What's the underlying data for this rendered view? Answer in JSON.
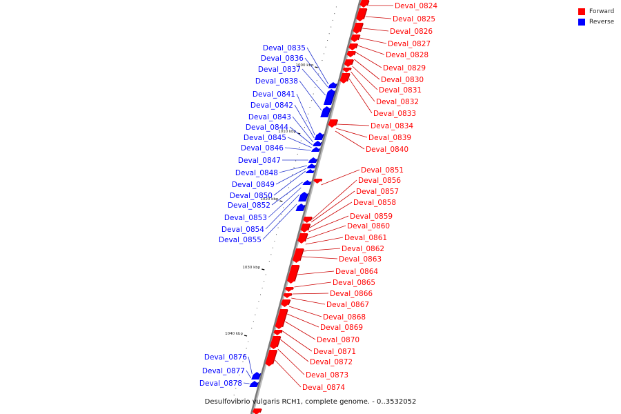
{
  "caption": "Desulfovibrio vulgaris RCH1, complete genome. - 0..3532052",
  "legend": {
    "forward_label": "Forward",
    "reverse_label": "Reverse"
  },
  "colors": {
    "forward": "#ff0000",
    "reverse": "#0000ff",
    "backbone": "#7a7a7a",
    "tick": "#000000",
    "leader_forward": "#cc0000",
    "leader_reverse": "#2233cc"
  },
  "scale": {
    "tick_labels": [
      "1000 kbp",
      "1010 kbp",
      "1020 kbp",
      "1030 kbp",
      "1040 kbp"
    ]
  },
  "forward_genes": [
    "Deval_0824",
    "Deval_0825",
    "Deval_0826",
    "Deval_0827",
    "Deval_0828",
    "Deval_0829",
    "Deval_0830",
    "Deval_0831",
    "Deval_0832",
    "Deval_0833",
    "Deval_0834",
    "Deval_0839",
    "Deval_0840",
    "Deval_0851",
    "Deval_0856",
    "Deval_0857",
    "Deval_0858",
    "Deval_0859",
    "Deval_0860",
    "Deval_0861",
    "Deval_0862",
    "Deval_0863",
    "Deval_0864",
    "Deval_0865",
    "Deval_0866",
    "Deval_0867",
    "Deval_0868",
    "Deval_0869",
    "Deval_0870",
    "Deval_0871",
    "Deval_0872",
    "Deval_0873",
    "Deval_0874"
  ],
  "reverse_genes": [
    "Deval_0835",
    "Deval_0836",
    "Deval_0837",
    "Deval_0838",
    "Deval_0841",
    "Deval_0842",
    "Deval_0843",
    "Deval_0844",
    "Deval_0845",
    "Deval_0846",
    "Deval_0847",
    "Deval_0848",
    "Deval_0849",
    "Deval_0850",
    "Deval_0852",
    "Deval_0853",
    "Deval_0854",
    "Deval_0855",
    "Deval_0876",
    "Deval_0877",
    "Deval_0878"
  ]
}
